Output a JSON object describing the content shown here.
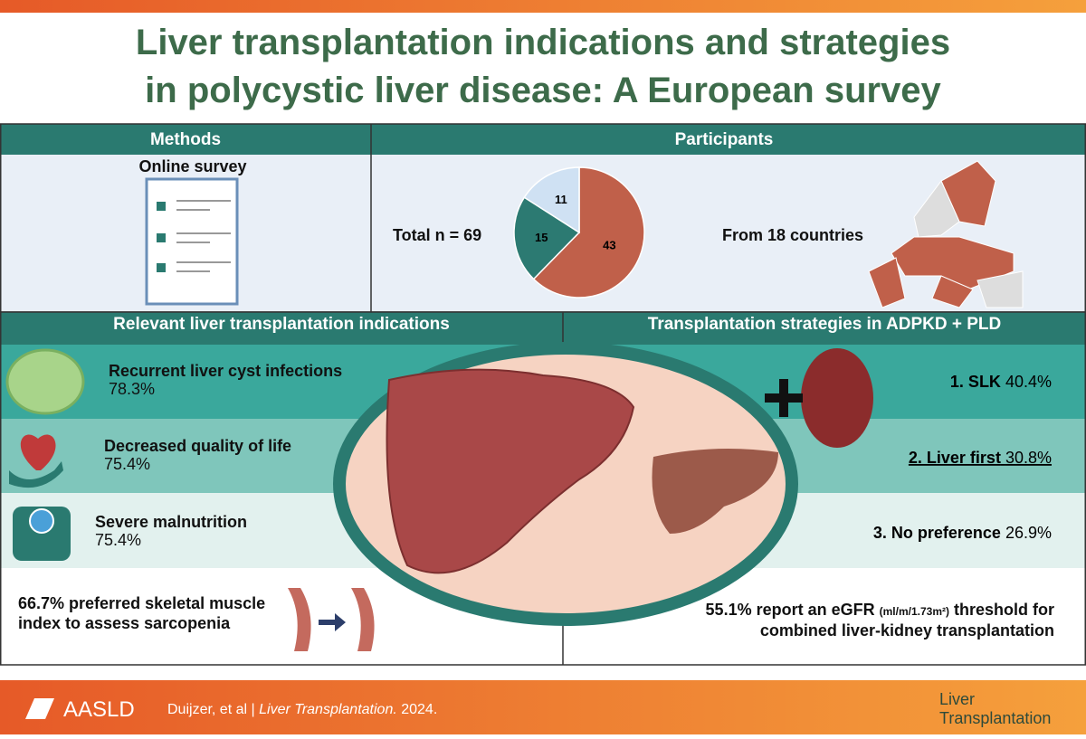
{
  "header": {
    "title_lines": [
      "Liver transplantation indications and strategies",
      "in polycystic liver disease: A European survey"
    ]
  },
  "methods": {
    "header": "Methods",
    "label": "Online survey"
  },
  "participants": {
    "header": "Participants",
    "total": "Total n = 69",
    "countries": "From 18 countries",
    "pie": {
      "type": "pie",
      "values": [
        43,
        15,
        11
      ],
      "colors": [
        "#c0604a",
        "#2c7a72",
        "#cfe1f3"
      ]
    }
  },
  "indications": {
    "header": "Relevant liver transplantation indications",
    "items": [
      {
        "title": "Recurrent liver cyst infections",
        "value": "78.3%"
      },
      {
        "title": "Decreased quality of life",
        "value": "75.4%"
      },
      {
        "title": "Severe malnutrition",
        "value": "75.4%"
      }
    ],
    "sarcopenia": [
      "66.7% preferred skeletal muscle",
      "index to assess sarcopenia"
    ]
  },
  "strategies": {
    "header": "Transplantation strategies in ADPKD + PLD",
    "items": [
      {
        "label": "1. SLK",
        "value": "40.4%"
      },
      {
        "label": "2. Liver first",
        "value": "30.8%"
      },
      {
        "label": "3. No preference",
        "value": "26.9%"
      }
    ],
    "egfr": {
      "prefix": "55.1% report an eGFR",
      "unit": "(ml/m/1.73m²)",
      "suffix": "threshold for",
      "line2": "combined liver-kidney transplantation"
    }
  },
  "footer": {
    "brand": "AASLD",
    "authors": "Duijzer, et al",
    "separator": "|",
    "journal": "Liver Transplantation.",
    "year": "2024.",
    "logo": [
      "Liver",
      "Transplantation"
    ]
  }
}
